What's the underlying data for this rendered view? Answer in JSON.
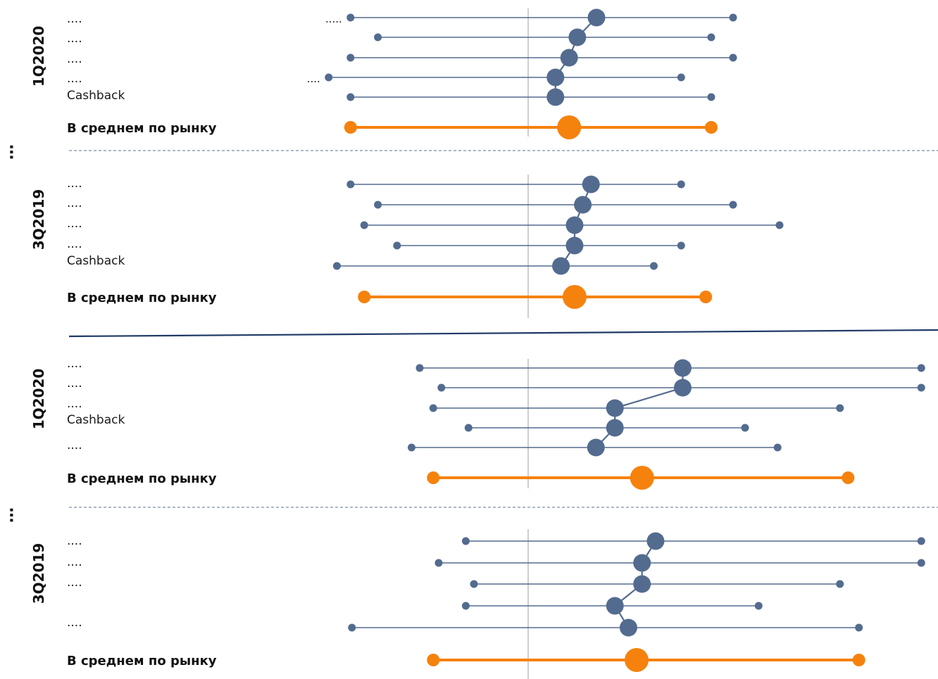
{
  "colors": {
    "series": "#536b8f",
    "market": "#f5820d",
    "axis": "#bdbdbd",
    "dashed": "#7a8ca8",
    "divider": "#1f3a66",
    "text": "#1a1a1a"
  },
  "separator_marks": [
    "⋯",
    "⋯"
  ],
  "chart_data": {
    "type": "dumbbell",
    "title": "",
    "xlabel": "",
    "ylabel": "",
    "grid": false,
    "x_unit": "",
    "center_line_value": 0,
    "xlim": [
      -6.5,
      15
    ],
    "series_style": "blue rows show min, median (large dot) and max; orange row is market average",
    "groups": [
      {
        "panels": [
          {
            "period": "1Q2020",
            "rows": [
              {
                "label": "....",
                "left_label": ".....",
                "min": -6.5,
                "median": 2.5,
                "max": 7.5
              },
              {
                "label": "....",
                "left_label": "",
                "min": -5.5,
                "median": 1.8,
                "max": 6.7
              },
              {
                "label": "....",
                "left_label": "",
                "min": -6.5,
                "median": 1.5,
                "max": 7.5
              },
              {
                "label": "....",
                "left_label": "....",
                "min": -7.3,
                "median": 1.0,
                "max": 5.6
              },
              {
                "label": "Cashback",
                "left_label": "",
                "min": -6.5,
                "median": 1.0,
                "max": 6.7
              }
            ],
            "market": {
              "label": "В среднем по рынку",
              "min": -6.5,
              "median": 1.5,
              "max": 6.7
            }
          },
          {
            "period": "3Q2019",
            "rows": [
              {
                "label": "....",
                "left_label": "",
                "min": -6.5,
                "median": 2.3,
                "max": 5.6
              },
              {
                "label": "....",
                "left_label": "",
                "min": -5.5,
                "median": 2.0,
                "max": 7.5
              },
              {
                "label": "....",
                "left_label": "",
                "min": -6.0,
                "median": 1.7,
                "max": 9.2
              },
              {
                "label": "....",
                "left_label": "",
                "min": -4.8,
                "median": 1.7,
                "max": 5.6
              },
              {
                "label": "Cashback",
                "left_label": "",
                "min": -7.0,
                "median": 1.2,
                "max": 4.6
              }
            ],
            "market": {
              "label": "В среднем по рынку",
              "min": -6.0,
              "median": 1.7,
              "max": 6.5
            }
          }
        ]
      },
      {
        "panels": [
          {
            "period": "1Q2020",
            "rows": [
              {
                "label": "....",
                "min": -4.0,
                "median": 5.7,
                "max": 14.5
              },
              {
                "label": "....",
                "min": -3.2,
                "median": 5.7,
                "max": 14.5
              },
              {
                "label": "....",
                "min": -3.5,
                "median": 3.2,
                "max": 11.5
              },
              {
                "label": "Cashback",
                "min": -2.2,
                "median": 3.2,
                "max": 8.0
              },
              {
                "label": "....",
                "min": -4.3,
                "median": 2.5,
                "max": 9.2
              }
            ],
            "market": {
              "label": "В среднем по рынку",
              "min": -3.5,
              "median": 4.2,
              "max": 11.8
            }
          },
          {
            "period": "3Q2019",
            "rows": [
              {
                "label": "....",
                "min": -2.3,
                "median": 4.7,
                "max": 14.5
              },
              {
                "label": "....",
                "min": -3.3,
                "median": 4.2,
                "max": 14.5
              },
              {
                "label": "....",
                "min": -2.0,
                "median": 4.2,
                "max": 11.5
              },
              {
                "label": "",
                "min": -2.3,
                "median": 3.2,
                "max": 8.5
              },
              {
                "label": "....",
                "min": -6.5,
                "median": 3.7,
                "max": 12.2
              }
            ],
            "market": {
              "label": "В среднем по рынку",
              "min": -3.5,
              "median": 4.0,
              "max": 12.2
            }
          }
        ]
      }
    ]
  }
}
